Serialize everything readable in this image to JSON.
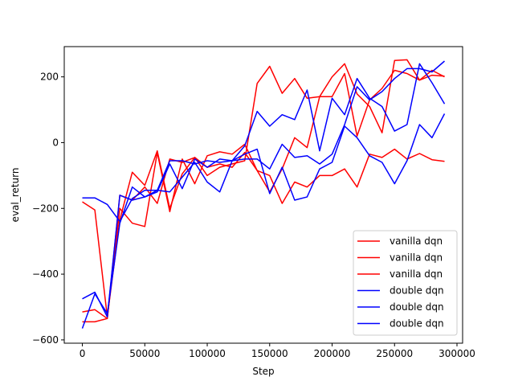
{
  "chart_data": {
    "type": "line",
    "title": "",
    "xlabel": "Step",
    "ylabel": "eval_return",
    "xlim": [
      -14500,
      304500
    ],
    "ylim": [
      -610,
      292
    ],
    "xticks": [
      0,
      50000,
      100000,
      150000,
      200000,
      250000,
      300000
    ],
    "xtick_labels": [
      "0",
      "50000",
      "100000",
      "150000",
      "200000",
      "250000",
      "300000"
    ],
    "yticks": [
      -600,
      -400,
      -200,
      0,
      200
    ],
    "ytick_labels": [
      "−600",
      "−400",
      "−200",
      "0",
      "200"
    ],
    "grid": false,
    "legend_position": "lower-right",
    "x": [
      0,
      10000,
      20000,
      30000,
      40000,
      50000,
      60000,
      70000,
      80000,
      90000,
      100000,
      110000,
      120000,
      130000,
      140000,
      150000,
      160000,
      170000,
      180000,
      190000,
      200000,
      210000,
      220000,
      230000,
      240000,
      250000,
      260000,
      270000,
      280000,
      290000
    ],
    "series": [
      {
        "name": "vanilla dqn",
        "color": "#ff0000",
        "values": [
          -180,
          -205,
          -530,
          -235,
          -90,
          -130,
          -25,
          -200,
          -95,
          -45,
          -100,
          -75,
          -65,
          -55,
          180,
          232,
          150,
          195,
          135,
          140,
          200,
          240,
          148,
          110,
          30,
          250,
          252,
          190,
          220,
          200
        ]
      },
      {
        "name": "vanilla dqn",
        "color": "#ff0000",
        "values": [
          -515,
          -508,
          -535,
          -200,
          -245,
          -255,
          -30,
          -210,
          -50,
          -125,
          -40,
          -28,
          -35,
          -5,
          -85,
          -100,
          -185,
          -120,
          -135,
          -100,
          -100,
          -80,
          -135,
          -35,
          -45,
          -20,
          -50,
          -33,
          -52,
          -57
        ]
      },
      {
        "name": "vanilla dqn",
        "color": "#ff0000",
        "values": [
          -545,
          -545,
          -535,
          -160,
          -175,
          -135,
          -185,
          -50,
          -60,
          -45,
          -75,
          -65,
          -75,
          -30,
          -85,
          -150,
          -80,
          15,
          -15,
          140,
          140,
          210,
          20,
          130,
          165,
          220,
          210,
          190,
          205,
          202
        ]
      },
      {
        "name": "double dqn",
        "color": "#0000ff",
        "values": [
          -475,
          -455,
          -530,
          -160,
          -175,
          -165,
          -145,
          -150,
          -105,
          -60,
          -120,
          -150,
          -55,
          -10,
          95,
          50,
          85,
          70,
          160,
          -25,
          135,
          85,
          195,
          135,
          110,
          35,
          55,
          240,
          182,
          118
        ]
      },
      {
        "name": "double dqn",
        "color": "#0000ff",
        "values": [
          -565,
          -460,
          -520,
          -245,
          -135,
          -165,
          -150,
          -65,
          -140,
          -50,
          -75,
          -50,
          -55,
          -35,
          -20,
          -155,
          -75,
          -175,
          -165,
          -80,
          -60,
          50,
          15,
          -40,
          -60,
          -125,
          -55,
          55,
          15,
          88
        ]
      },
      {
        "name": "double dqn",
        "color": "#0000ff",
        "values": [
          -168,
          -168,
          -188,
          -240,
          -170,
          -145,
          -145,
          -55,
          -55,
          -65,
          -55,
          -60,
          -55,
          -50,
          -50,
          -80,
          -5,
          -45,
          -40,
          -65,
          -35,
          55,
          170,
          130,
          155,
          195,
          225,
          225,
          215,
          248
        ]
      }
    ]
  }
}
